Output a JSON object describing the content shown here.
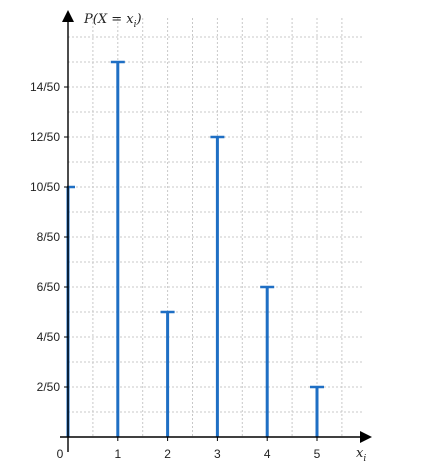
{
  "chart_data": {
    "type": "bar",
    "subtype": "stem",
    "x": [
      0,
      1,
      2,
      3,
      4,
      5
    ],
    "values": [
      0.2,
      0.3,
      0.1,
      0.24,
      0.12,
      0.04
    ],
    "x_tick_labels": [
      "0",
      "1",
      "2",
      "3",
      "4",
      "5"
    ],
    "y_tick_values": [
      0.04,
      0.08,
      0.12,
      0.16,
      0.2,
      0.24,
      0.28
    ],
    "y_tick_labels": [
      "2/50",
      "4/50",
      "6/50",
      "8/50",
      "10/50",
      "12/50",
      "14/50"
    ],
    "xlabel": "x_i",
    "ylabel": "P(X = x_i)",
    "xlim": [
      0,
      6
    ],
    "ylim": [
      0,
      0.32
    ],
    "grid": true,
    "stem_color": "#1f6fc4"
  }
}
